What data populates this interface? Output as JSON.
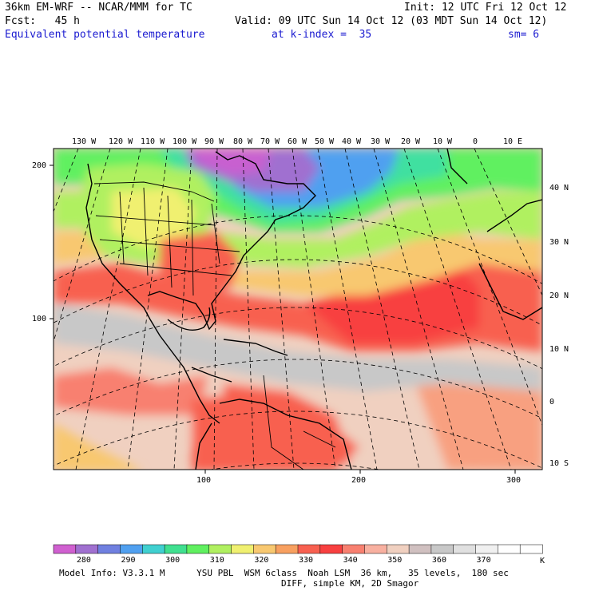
{
  "header": {
    "model": "36km EM-WRF -- NCAR/MMM for TC",
    "init": "Init: 12 UTC Fri 12 Oct 12",
    "fcst": "Fcst:   45 h",
    "valid": "Valid: 09 UTC Sun 14 Oct 12 (03 MDT Sun 14 Oct 12)",
    "field": "Equivalent potential temperature",
    "level": "at k-index =  35",
    "smooth": "sm= 6"
  },
  "map": {
    "lon_labels": [
      "130 W",
      "120 W",
      "110 W",
      "100 W",
      "90 W",
      "80 W",
      "70 W",
      "60 W",
      "50 W",
      "40 W",
      "30 W",
      "20 W",
      "10 W",
      "0",
      "10 E"
    ],
    "lat_labels": [
      "40 N",
      "30 N",
      "20 N",
      "10 N",
      "0",
      "10 S"
    ],
    "grid_y_labels": [
      "200",
      "100"
    ],
    "grid_x_labels": [
      "100",
      "200",
      "300"
    ]
  },
  "colorbar": {
    "labels": [
      "280",
      "290",
      "300",
      "310",
      "320",
      "330",
      "340",
      "350",
      "360",
      "370"
    ],
    "unit": "K",
    "colors": [
      "#d060d0",
      "#a070d0",
      "#7080e0",
      "#50a0f0",
      "#40d0d0",
      "#40e090",
      "#60f060",
      "#b0f060",
      "#f0f070",
      "#f8c870",
      "#f8a060",
      "#f86050",
      "#f84040",
      "#f88070",
      "#f8b0a0",
      "#f0d0c0",
      "#d0c0c0",
      "#c8c8c8",
      "#e0e0e0",
      "#f0f0f0",
      "#ffffff",
      "#ffffff"
    ]
  },
  "footer": {
    "line1": "Model Info: V3.3.1 M      YSU PBL  WSM 6class  Noah LSM  36 km,   35 levels,  180 sec",
    "line2": "DIFF, simple KM, 2D Smagor"
  }
}
